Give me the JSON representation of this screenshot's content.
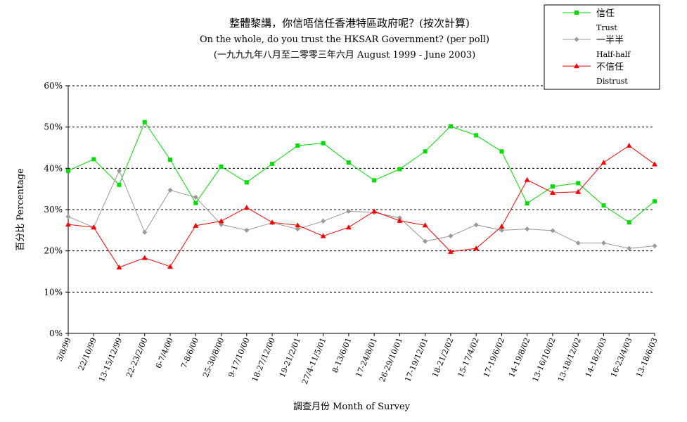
{
  "chart_data": {
    "type": "line",
    "title": "整體黎講，你信唔信任香港特區政府呢？(按次計算)",
    "subtitle": "On the whole, do you trust the HKSAR Government? (per poll)",
    "subtitle2": "(一九九九年八月至二零零三年六月 August 1999 - June 2003)",
    "xlabel": "調查月份 Month of Survey",
    "ylabel": "百分比 Percentage",
    "ylim": [
      0,
      60
    ],
    "yticks": [
      "0%",
      "10%",
      "20%",
      "30%",
      "40%",
      "50%",
      "60%"
    ],
    "grid": true,
    "legend_position": "top-right",
    "categories": [
      "3/8/99",
      "22/10/99",
      "13-15/12/99",
      "22-23/2/00",
      "6-7/4/00",
      "7-8/6/00",
      "25-30/8/00",
      "9-17/10/00",
      "18-27/12/00",
      "19-21/2/01",
      "27/4-11/5/01",
      "8-13/6/01",
      "17-24/8/01",
      "26-29/10/01",
      "17-19/12/01",
      "18-21/2/02",
      "15-17/4/02",
      "17-19/6/02",
      "14-19/8/02",
      "13-16/10/02",
      "13-18/12/02",
      "14-18/2/03",
      "16-23/4/03",
      "13-18/6/03"
    ],
    "series": [
      {
        "name": "信任",
        "name_en": "Trust",
        "color": "#00dd00",
        "marker": "square",
        "values": [
          39.4,
          42.2,
          36.0,
          51.2,
          42.1,
          31.6,
          40.4,
          36.6,
          41.1,
          45.5,
          46.1,
          41.4,
          37.1,
          39.8,
          44.1,
          50.2,
          48.0,
          44.1,
          31.5,
          35.6,
          36.4,
          31.0,
          26.9,
          32.0
        ]
      },
      {
        "name": "一半半",
        "name_en": "Half-half",
        "color": "#999999",
        "marker": "diamond",
        "values": [
          28.3,
          25.7,
          39.4,
          24.5,
          34.7,
          33.0,
          26.4,
          25.0,
          26.8,
          25.3,
          27.2,
          29.6,
          29.3,
          28.0,
          22.3,
          23.6,
          26.3,
          25.0,
          25.3,
          24.9,
          21.9,
          21.9,
          20.6,
          21.2
        ]
      },
      {
        "name": "不信任",
        "name_en": "Distrust",
        "color": "#ff0000",
        "marker": "triangle",
        "values": [
          26.4,
          25.7,
          16.0,
          18.3,
          16.2,
          26.1,
          27.2,
          30.5,
          26.9,
          26.2,
          23.6,
          25.7,
          29.6,
          27.3,
          26.2,
          19.8,
          20.6,
          25.9,
          37.2,
          34.1,
          34.3,
          41.4,
          45.5,
          41.0
        ]
      }
    ]
  }
}
